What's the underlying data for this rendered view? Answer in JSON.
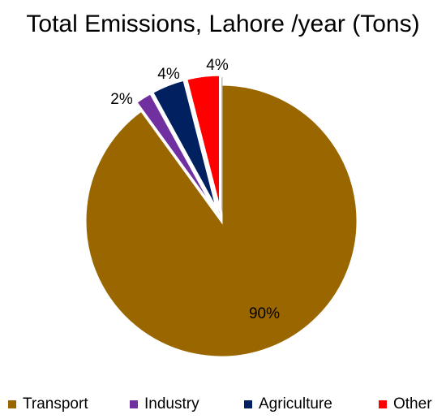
{
  "chart_data": {
    "type": "pie",
    "title": "Total Emissions, Lahore /year (Tons)",
    "categories": [
      "Transport",
      "Industry",
      "Agriculture",
      "Other"
    ],
    "values": [
      90,
      2,
      4,
      4
    ],
    "data_labels": [
      "90%",
      "2%",
      "4%",
      "4%"
    ],
    "colors": [
      "#996600",
      "#7030a0",
      "#002060",
      "#ff0000"
    ],
    "exploded_slices": [
      "Industry",
      "Agriculture",
      "Other"
    ],
    "legend_position": "bottom"
  },
  "legend": {
    "items": [
      {
        "label": "Transport",
        "color": "#996600"
      },
      {
        "label": "Industry",
        "color": "#7030a0"
      },
      {
        "label": "Agriculture",
        "color": "#002060"
      },
      {
        "label": "Other",
        "color": "#ff0000"
      }
    ]
  }
}
